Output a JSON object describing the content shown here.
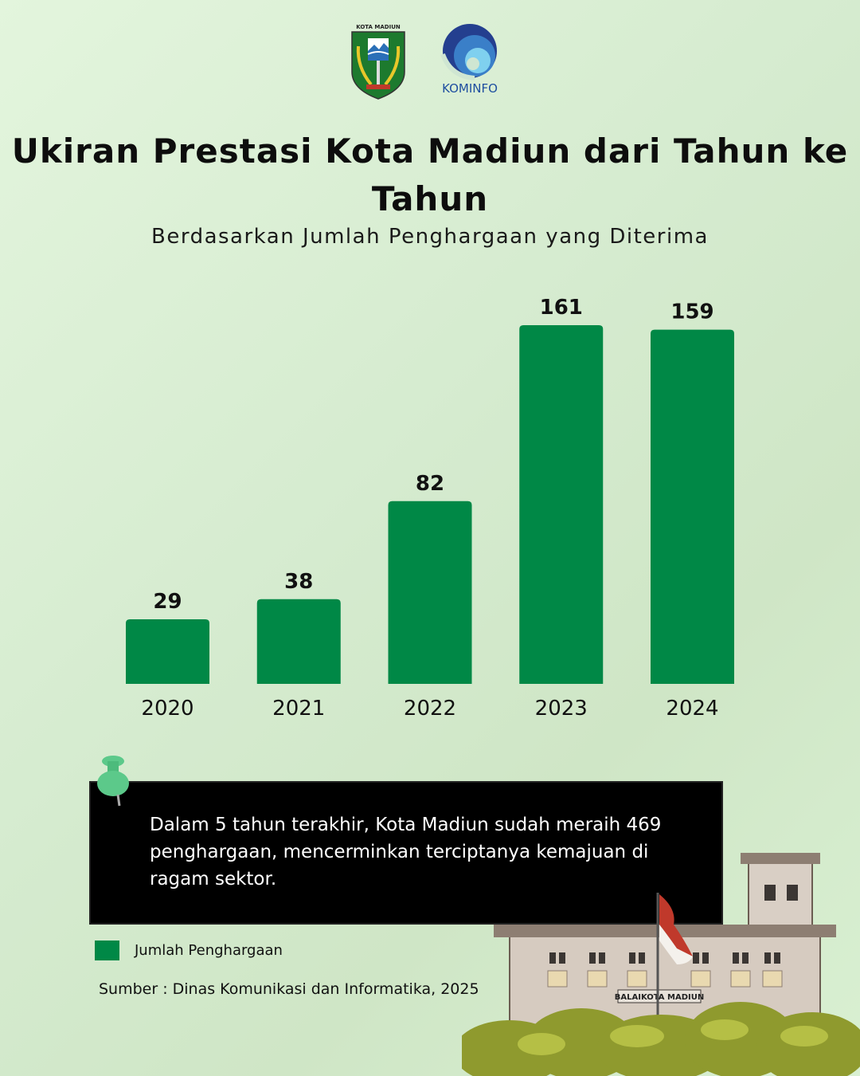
{
  "logos": {
    "left": {
      "name": "kota-madiun-emblem",
      "text": "KOTA MADIUN"
    },
    "right": {
      "name": "kominfo-logo",
      "text": "KOMINFO"
    }
  },
  "colors": {
    "bar": "#008846",
    "note_bg": "#000000",
    "pin": "#5cc98a"
  },
  "note": {
    "text": "Dalam 5 tahun terakhir, Kota Madiun sudah meraih 469 penghargaan, mencerminkan terciptanya kemajuan di ragam sektor."
  },
  "source": "Sumber : Dinas Komunikasi dan Informatika, 2025",
  "illustration": {
    "sign_text": "BALAIKOTA MADIUN"
  },
  "chart_data": {
    "type": "bar",
    "title": "Ukiran Prestasi Kota Madiun dari Tahun ke Tahun",
    "subtitle": "Berdasarkan Jumlah Penghargaan yang Diterima",
    "categories": [
      "2020",
      "2021",
      "2022",
      "2023",
      "2024"
    ],
    "series": [
      {
        "name": "Jumlah Penghargaan",
        "values": [
          29,
          38,
          82,
          161,
          159
        ]
      }
    ],
    "data_labels": true,
    "ylim": [
      0,
      161
    ],
    "grid": false,
    "y_axis_shown": false,
    "legend_placement": "bottom-left"
  }
}
